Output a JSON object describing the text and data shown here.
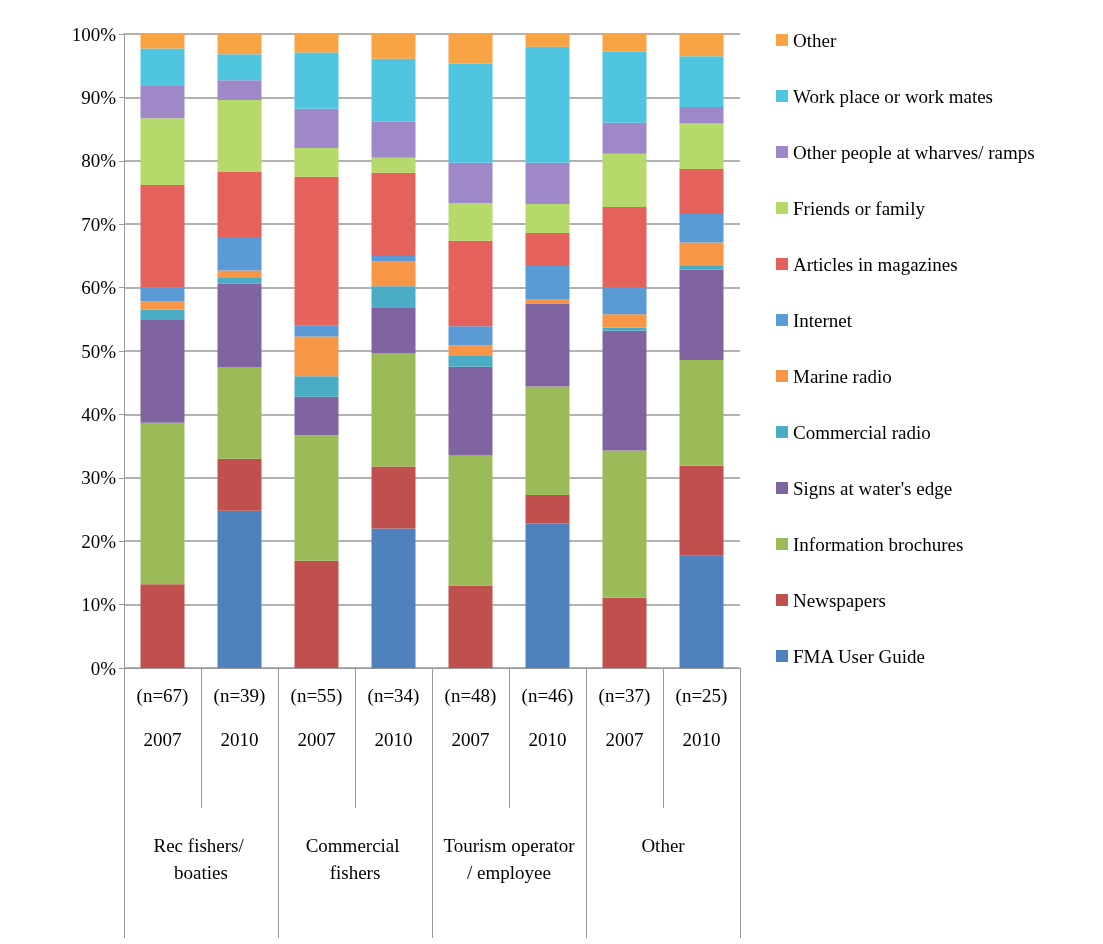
{
  "chart_data": {
    "type": "bar",
    "stacked": true,
    "categories": [
      "(n=67)\n\n2007",
      "(n=39)\n\n2010",
      "(n=55)\n\n2007",
      "(n=34)\n\n2010",
      "(n=48)\n\n2007",
      "(n=46)\n\n2010",
      "(n=37)\n\n2007",
      "(n=25)\n\n2010"
    ],
    "annotations": [
      "Rec fishers/ boaties",
      "Commercial fishers",
      "Tourism operator/ employee",
      "Other"
    ],
    "ylim": [
      0,
      100
    ],
    "yticks": [
      {
        "value": 0,
        "label": "0%"
      },
      {
        "value": 10,
        "label": "10%"
      },
      {
        "value": 20,
        "label": "20%"
      },
      {
        "value": 30,
        "label": "30%"
      },
      {
        "value": 40,
        "label": "40%"
      },
      {
        "value": 50,
        "label": "50%"
      },
      {
        "value": 60,
        "label": "60%"
      },
      {
        "value": 70,
        "label": "70%"
      },
      {
        "value": 80,
        "label": "80%"
      },
      {
        "value": 90,
        "label": "90%"
      },
      {
        "value": 100,
        "label": "100%"
      }
    ],
    "grid": "y",
    "legend": "right",
    "series": [
      {
        "name": "FMA User Guide",
        "color": "#4f81bd",
        "values": [
          0,
          24.8,
          0,
          22,
          0,
          22.8,
          0,
          17.7
        ]
      },
      {
        "name": "Newspapers",
        "color": "#c0504d",
        "values": [
          13.2,
          8.2,
          16.9,
          9.8,
          13,
          4.5,
          11.1,
          14.2
        ]
      },
      {
        "name": "Information brochures",
        "color": "#9bbb59",
        "values": [
          25.5,
          14.4,
          19.8,
          17.8,
          20.5,
          17.1,
          23.2,
          16.7
        ]
      },
      {
        "name": "Signs at water's edge",
        "color": "#8064a2",
        "values": [
          16.3,
          13.2,
          6.1,
          7.3,
          14,
          13.1,
          18.9,
          14.2
        ]
      },
      {
        "name": "Commercial radio",
        "color": "#4bacc6",
        "values": [
          1.5,
          0.9,
          3.2,
          3.3,
          1.7,
          0,
          0.5,
          0.6
        ]
      },
      {
        "name": "Marine radio",
        "color": "#f79646",
        "values": [
          1.3,
          1.2,
          6.3,
          3.9,
          1.7,
          0.7,
          2.1,
          3.7
        ]
      },
      {
        "name": "Internet",
        "color": "#5b9bd5",
        "values": [
          2.2,
          5.3,
          1.7,
          0.9,
          3,
          5.2,
          4.3,
          4.5
        ]
      },
      {
        "name": "Articles in magazines",
        "color": "#e5625c",
        "values": [
          16.2,
          10.3,
          23.5,
          13.1,
          13.5,
          5.2,
          12.6,
          7.1
        ]
      },
      {
        "name": "Friends or family",
        "color": "#b5d96b",
        "values": [
          10.5,
          11.3,
          4.5,
          2.4,
          5.9,
          4.6,
          8.4,
          7.2
        ]
      },
      {
        "name": "Other people at wharves/ ramps",
        "color": "#9f88c8",
        "values": [
          5.1,
          3.1,
          6.2,
          5.7,
          6.4,
          6.5,
          4.9,
          2.6
        ]
      },
      {
        "name": "Work place or work mates",
        "color": "#4fc5e0",
        "values": [
          5.9,
          4.1,
          8.9,
          9.9,
          15.6,
          18.3,
          11.2,
          8
        ]
      },
      {
        "name": "Other",
        "color": "#f9a444",
        "values": [
          2.3,
          3.2,
          2.9,
          3.9,
          4.7,
          2,
          2.8,
          3.5
        ]
      }
    ]
  }
}
